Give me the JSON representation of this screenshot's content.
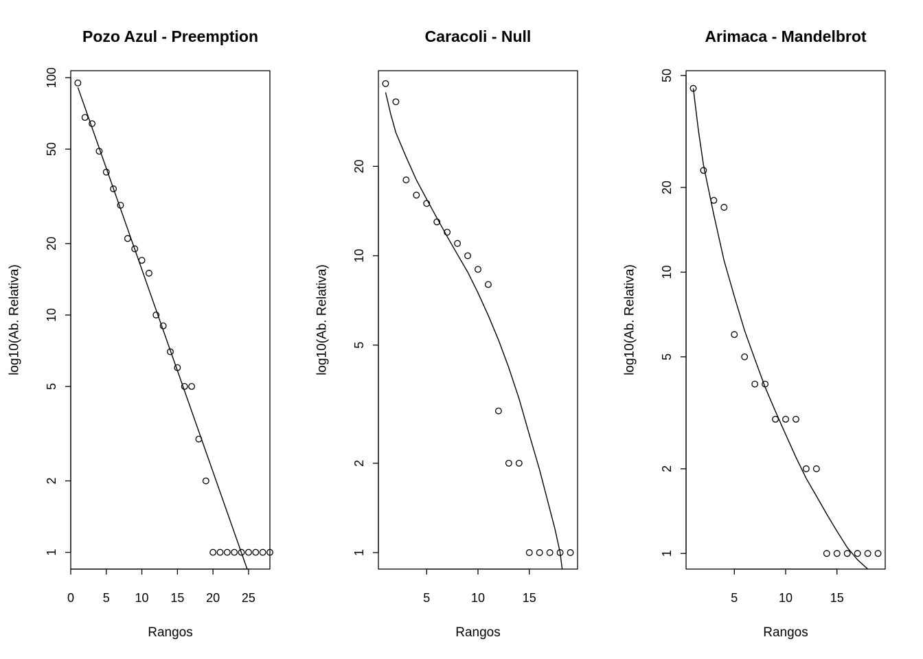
{
  "chart_data": [
    {
      "type": "scatter",
      "title": "Pozo Azul - Preemption",
      "xlabel": "Rangos",
      "ylabel": "log10(Ab. Relativa)",
      "y_scale": "log",
      "xlim": [
        0,
        28
      ],
      "ylim": [
        0.85,
        107
      ],
      "x_ticks": [
        0,
        5,
        10,
        15,
        20,
        25
      ],
      "x_tick_labels": [
        "0",
        "5",
        "10",
        "15",
        "20",
        "25"
      ],
      "y_ticks": [
        1,
        2,
        5,
        10,
        20,
        50,
        100
      ],
      "y_tick_labels": [
        "1",
        "2",
        "5",
        "10",
        "20",
        "50",
        "100"
      ],
      "grid": false,
      "legend": "none",
      "series": [
        {
          "kind": "points",
          "x": [
            1,
            2,
            3,
            4,
            5,
            6,
            7,
            8,
            9,
            10,
            11,
            12,
            13,
            14,
            15,
            16,
            17,
            18,
            19,
            20,
            21,
            22,
            23,
            24,
            25,
            26,
            27,
            28
          ],
          "y": [
            95,
            68,
            64,
            49,
            40,
            34,
            29,
            21,
            19,
            17,
            15,
            10,
            9,
            7,
            6,
            5,
            5,
            3,
            2,
            1,
            1,
            1,
            1,
            1,
            1,
            1,
            1,
            1
          ]
        },
        {
          "kind": "fitted-line",
          "x": [
            1,
            24.8
          ],
          "y": [
            91,
            0.85
          ]
        }
      ]
    },
    {
      "type": "scatter",
      "title": "Caracoli - Null",
      "xlabel": "Rangos",
      "ylabel": "log10(Ab. Relativa)",
      "y_scale": "log",
      "xlim": [
        0.3,
        19.7
      ],
      "ylim": [
        0.88,
        42
      ],
      "x_ticks": [
        5,
        10,
        15
      ],
      "x_tick_labels": [
        "5",
        "10",
        "15"
      ],
      "y_ticks": [
        1,
        2,
        5,
        10,
        20
      ],
      "y_tick_labels": [
        "1",
        "2",
        "5",
        "10",
        "20"
      ],
      "grid": false,
      "legend": "none",
      "series": [
        {
          "kind": "points",
          "x": [
            1,
            2,
            3,
            4,
            5,
            6,
            7,
            8,
            9,
            10,
            11,
            12,
            13,
            14,
            15,
            16,
            17,
            18,
            19
          ],
          "y": [
            38,
            33,
            18,
            16,
            15,
            13,
            12,
            11,
            10,
            9,
            8,
            3,
            2,
            2,
            1,
            1,
            1,
            1,
            1
          ]
        },
        {
          "kind": "fitted-line",
          "x": [
            1,
            1.5,
            2,
            3,
            4,
            5,
            6,
            7,
            8,
            9,
            10,
            11,
            12,
            13,
            14,
            15,
            16,
            17,
            17.5,
            18,
            18.2
          ],
          "y": [
            35.5,
            30,
            26,
            21.5,
            18,
            15.5,
            13.4,
            11.6,
            10.1,
            8.8,
            7.5,
            6.3,
            5.2,
            4.2,
            3.3,
            2.5,
            1.9,
            1.4,
            1.2,
            1.0,
            0.88
          ]
        }
      ]
    },
    {
      "type": "scatter",
      "title": "Arimaca - Mandelbrot",
      "xlabel": "Rangos",
      "ylabel": "log10(Ab. Relativa)",
      "y_scale": "log",
      "xlim": [
        0.3,
        19.7
      ],
      "ylim": [
        0.88,
        52
      ],
      "x_ticks": [
        5,
        10,
        15
      ],
      "x_tick_labels": [
        "5",
        "10",
        "15"
      ],
      "y_ticks": [
        1,
        2,
        5,
        10,
        20,
        50
      ],
      "y_tick_labels": [
        "1",
        "2",
        "5",
        "10",
        "20",
        "50"
      ],
      "grid": false,
      "legend": "none",
      "series": [
        {
          "kind": "points",
          "x": [
            1,
            2,
            3,
            4,
            5,
            6,
            7,
            8,
            9,
            10,
            11,
            12,
            13,
            14,
            15,
            16,
            17,
            18,
            19
          ],
          "y": [
            45,
            23,
            18,
            17,
            6,
            5,
            4,
            4,
            3,
            3,
            3,
            2,
            2,
            1,
            1,
            1,
            1,
            1,
            1
          ]
        },
        {
          "kind": "fitted-line",
          "x": [
            1,
            1.5,
            2,
            3,
            4,
            5,
            6,
            7,
            8,
            9,
            10,
            11,
            12,
            13,
            14,
            15,
            16,
            17,
            18
          ],
          "y": [
            45,
            32,
            24,
            16,
            11,
            8.2,
            6.2,
            4.9,
            3.9,
            3.2,
            2.65,
            2.2,
            1.85,
            1.6,
            1.38,
            1.2,
            1.05,
            0.95,
            0.88
          ]
        }
      ]
    }
  ]
}
